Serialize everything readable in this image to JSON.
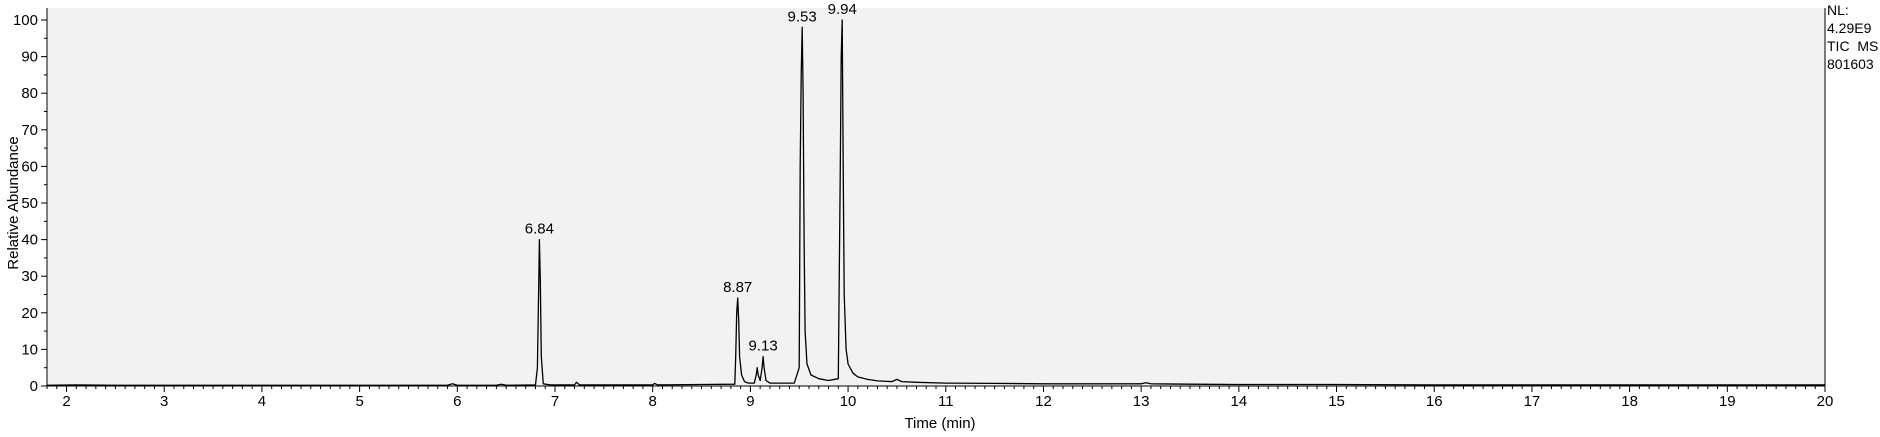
{
  "chart_data": {
    "type": "line",
    "xlabel": "Time (min)",
    "ylabel": "Relative Abundance",
    "xlim": [
      1.8,
      20
    ],
    "ylim": [
      0,
      100
    ],
    "xticks": [
      "2",
      "3",
      "4",
      "5",
      "6",
      "7",
      "8",
      "9",
      "10",
      "11",
      "12",
      "13",
      "14",
      "15",
      "16",
      "17",
      "18",
      "19",
      "20"
    ],
    "yticks": [
      "0",
      "10",
      "20",
      "30",
      "40",
      "50",
      "60",
      "70",
      "80",
      "90",
      "100"
    ],
    "grid": false,
    "background_color": "#f2f2f2",
    "line_color": "#000000",
    "info_lines": [
      "NL:",
      "4.29E9",
      "TIC  MS",
      "801603"
    ],
    "peak_labels": [
      {
        "x": 6.84,
        "y": 40,
        "label": "6.84"
      },
      {
        "x": 8.87,
        "y": 24,
        "label": "8.87"
      },
      {
        "x": 9.13,
        "y": 8,
        "label": "9.13"
      },
      {
        "x": 9.53,
        "y": 98,
        "label": "9.53"
      },
      {
        "x": 9.94,
        "y": 100,
        "label": "9.94"
      }
    ],
    "series": [
      {
        "values": [
          [
            1.8,
            0.2
          ],
          [
            2.1,
            0.3
          ],
          [
            2.5,
            0.2
          ],
          [
            3.0,
            0.2
          ],
          [
            3.5,
            0.2
          ],
          [
            4.0,
            0.2
          ],
          [
            4.5,
            0.2
          ],
          [
            5.0,
            0.2
          ],
          [
            5.5,
            0.2
          ],
          [
            5.9,
            0.2
          ],
          [
            5.95,
            0.6
          ],
          [
            6.0,
            0.2
          ],
          [
            6.4,
            0.2
          ],
          [
            6.45,
            0.5
          ],
          [
            6.5,
            0.2
          ],
          [
            6.8,
            0.3
          ],
          [
            6.82,
            5
          ],
          [
            6.83,
            22
          ],
          [
            6.84,
            40
          ],
          [
            6.85,
            29
          ],
          [
            6.86,
            8
          ],
          [
            6.88,
            0.6
          ],
          [
            6.95,
            0.3
          ],
          [
            7.2,
            0.3
          ],
          [
            7.22,
            1.0
          ],
          [
            7.25,
            0.3
          ],
          [
            7.6,
            0.3
          ],
          [
            8.0,
            0.3
          ],
          [
            8.02,
            0.7
          ],
          [
            8.05,
            0.3
          ],
          [
            8.5,
            0.4
          ],
          [
            8.84,
            0.5
          ],
          [
            8.85,
            8
          ],
          [
            8.86,
            20
          ],
          [
            8.87,
            24
          ],
          [
            8.88,
            18
          ],
          [
            8.89,
            8
          ],
          [
            8.91,
            3
          ],
          [
            8.94,
            1.2
          ],
          [
            8.98,
            0.8
          ],
          [
            9.04,
            0.8
          ],
          [
            9.06,
            3
          ],
          [
            9.07,
            5
          ],
          [
            9.08,
            3
          ],
          [
            9.1,
            1.5
          ],
          [
            9.12,
            5
          ],
          [
            9.13,
            8
          ],
          [
            9.14,
            5
          ],
          [
            9.16,
            1.5
          ],
          [
            9.2,
            0.8
          ],
          [
            9.3,
            0.8
          ],
          [
            9.45,
            0.8
          ],
          [
            9.5,
            5
          ],
          [
            9.51,
            60
          ],
          [
            9.52,
            85
          ],
          [
            9.53,
            98
          ],
          [
            9.54,
            80
          ],
          [
            9.55,
            40
          ],
          [
            9.56,
            15
          ],
          [
            9.58,
            6
          ],
          [
            9.62,
            3
          ],
          [
            9.7,
            2
          ],
          [
            9.8,
            1.5
          ],
          [
            9.9,
            2
          ],
          [
            9.92,
            60
          ],
          [
            9.93,
            90
          ],
          [
            9.94,
            100
          ],
          [
            9.95,
            60
          ],
          [
            9.96,
            25
          ],
          [
            9.98,
            10
          ],
          [
            10.0,
            6
          ],
          [
            10.05,
            3.5
          ],
          [
            10.1,
            2.5
          ],
          [
            10.2,
            1.8
          ],
          [
            10.3,
            1.4
          ],
          [
            10.45,
            1.2
          ],
          [
            10.5,
            1.8
          ],
          [
            10.55,
            1.2
          ],
          [
            10.7,
            1.0
          ],
          [
            11.0,
            0.8
          ],
          [
            11.5,
            0.7
          ],
          [
            12.0,
            0.6
          ],
          [
            12.5,
            0.6
          ],
          [
            13.0,
            0.6
          ],
          [
            13.05,
            0.9
          ],
          [
            13.1,
            0.6
          ],
          [
            13.5,
            0.5
          ],
          [
            14.0,
            0.4
          ],
          [
            15.0,
            0.4
          ],
          [
            16.0,
            0.3
          ],
          [
            17.0,
            0.3
          ],
          [
            18.0,
            0.3
          ],
          [
            19.0,
            0.3
          ],
          [
            20.0,
            0.3
          ]
        ]
      }
    ]
  }
}
